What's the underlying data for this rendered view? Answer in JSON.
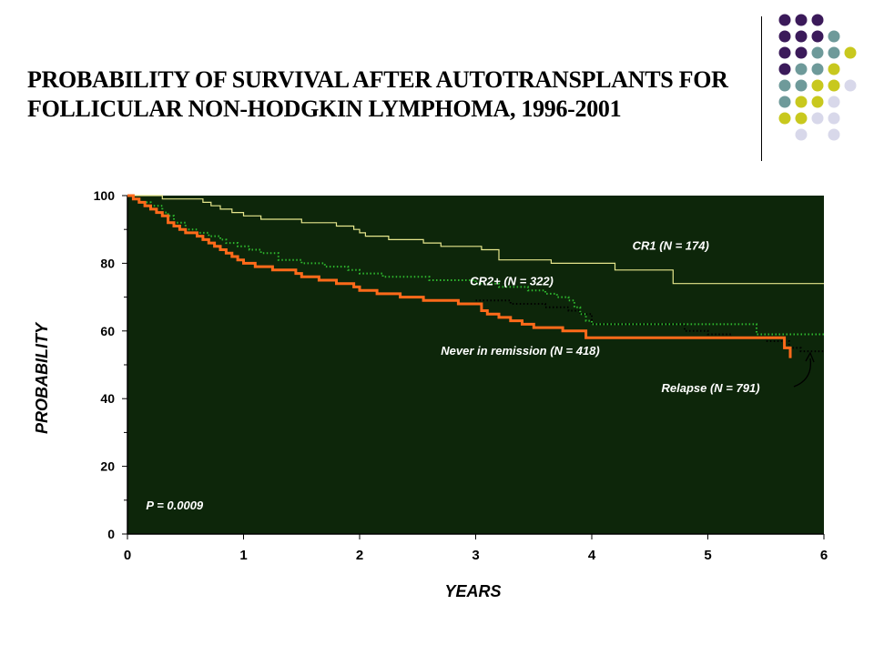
{
  "slide": {
    "title_line1": "PROBABILITY OF SURVIVAL AFTER AUTOTRANSPLANTS FOR",
    "title_line2": "FOLLICULAR NON-HODGKIN LYMPHOMA, 1996-2001"
  },
  "decor": {
    "dot_rows": [
      [
        "#3b1a5a",
        "#3b1a5a",
        "#3b1a5a",
        null,
        null
      ],
      [
        "#3b1a5a",
        "#3b1a5a",
        "#3b1a5a",
        "#6e9a9a",
        null
      ],
      [
        "#3b1a5a",
        "#3b1a5a",
        "#6e9a9a",
        "#6e9a9a",
        "#c8c81e"
      ],
      [
        "#3b1a5a",
        "#6e9a9a",
        "#6e9a9a",
        "#c8c81e",
        null
      ],
      [
        "#6e9a9a",
        "#6e9a9a",
        "#c8c81e",
        "#c8c81e",
        "#d8d8ea"
      ],
      [
        "#6e9a9a",
        "#c8c81e",
        "#c8c81e",
        "#d8d8ea",
        null
      ],
      [
        "#c8c81e",
        "#c8c81e",
        "#d8d8ea",
        "#d8d8ea",
        null
      ],
      [
        null,
        "#d8d8ea",
        null,
        "#d8d8ea",
        null
      ]
    ]
  },
  "chart_data": {
    "type": "line",
    "xlabel": "YEARS",
    "ylabel": "PROBABILITY",
    "xlim": [
      0,
      6
    ],
    "ylim": [
      0,
      100
    ],
    "xticks": [
      "0",
      "1",
      "2",
      "3",
      "4",
      "5",
      "6"
    ],
    "yticks": [
      "0",
      "20",
      "40",
      "60",
      "80",
      "100"
    ],
    "background": "#0d260a",
    "p_value_text": "P = 0.0009",
    "series": [
      {
        "name": "CR1 (N = 174)",
        "color": "#e6e68c",
        "style": "solid",
        "points": [
          [
            0,
            100
          ],
          [
            0.3,
            99
          ],
          [
            0.6,
            99
          ],
          [
            0.65,
            98
          ],
          [
            0.72,
            97
          ],
          [
            0.8,
            96
          ],
          [
            0.9,
            95
          ],
          [
            1.0,
            94
          ],
          [
            1.15,
            93
          ],
          [
            1.4,
            93
          ],
          [
            1.5,
            92
          ],
          [
            1.75,
            92
          ],
          [
            1.8,
            91
          ],
          [
            1.95,
            90
          ],
          [
            2.0,
            89
          ],
          [
            2.05,
            88
          ],
          [
            2.2,
            88
          ],
          [
            2.25,
            87
          ],
          [
            2.5,
            87
          ],
          [
            2.55,
            86
          ],
          [
            2.6,
            86
          ],
          [
            2.7,
            85
          ],
          [
            3.0,
            85
          ],
          [
            3.05,
            84
          ],
          [
            3.1,
            84
          ],
          [
            3.2,
            83
          ],
          [
            3.2,
            81
          ],
          [
            3.6,
            81
          ],
          [
            3.65,
            80
          ],
          [
            4.05,
            80
          ],
          [
            4.2,
            80
          ],
          [
            4.2,
            78
          ],
          [
            4.65,
            78
          ],
          [
            4.7,
            74
          ],
          [
            6.0,
            74
          ]
        ]
      },
      {
        "name": "CR2+ (N = 322)",
        "color": "#2eb82e",
        "style": "dotted",
        "points": [
          [
            0,
            100
          ],
          [
            0.05,
            99
          ],
          [
            0.1,
            98
          ],
          [
            0.2,
            97
          ],
          [
            0.3,
            95
          ],
          [
            0.35,
            94
          ],
          [
            0.4,
            92
          ],
          [
            0.5,
            90
          ],
          [
            0.6,
            89
          ],
          [
            0.7,
            88
          ],
          [
            0.8,
            87
          ],
          [
            0.85,
            86
          ],
          [
            0.95,
            85
          ],
          [
            1.05,
            84
          ],
          [
            1.15,
            83
          ],
          [
            1.3,
            81
          ],
          [
            1.5,
            80
          ],
          [
            1.7,
            79
          ],
          [
            1.9,
            78
          ],
          [
            2.0,
            77
          ],
          [
            2.1,
            77
          ],
          [
            2.2,
            76
          ],
          [
            2.5,
            76
          ],
          [
            2.6,
            75
          ],
          [
            2.9,
            75
          ],
          [
            3.0,
            74
          ],
          [
            3.2,
            73
          ],
          [
            3.45,
            72
          ],
          [
            3.6,
            71
          ],
          [
            3.7,
            70
          ],
          [
            3.8,
            69
          ],
          [
            3.85,
            67
          ],
          [
            3.9,
            65
          ],
          [
            3.95,
            63
          ],
          [
            4.0,
            62
          ],
          [
            5.4,
            62
          ],
          [
            5.42,
            59
          ],
          [
            6.0,
            59
          ]
        ]
      },
      {
        "name": "Never in remission (N = 418)",
        "color": "#ff6a1a",
        "style": "solid-thick",
        "points": [
          [
            0,
            100
          ],
          [
            0.05,
            99
          ],
          [
            0.1,
            98
          ],
          [
            0.15,
            97
          ],
          [
            0.2,
            96
          ],
          [
            0.25,
            95
          ],
          [
            0.3,
            94
          ],
          [
            0.35,
            92
          ],
          [
            0.4,
            91
          ],
          [
            0.45,
            90
          ],
          [
            0.5,
            89
          ],
          [
            0.6,
            88
          ],
          [
            0.65,
            87
          ],
          [
            0.7,
            86
          ],
          [
            0.75,
            85
          ],
          [
            0.8,
            84
          ],
          [
            0.85,
            83
          ],
          [
            0.9,
            82
          ],
          [
            0.95,
            81
          ],
          [
            1.0,
            80
          ],
          [
            1.05,
            80
          ],
          [
            1.1,
            79
          ],
          [
            1.2,
            79
          ],
          [
            1.25,
            78
          ],
          [
            1.4,
            78
          ],
          [
            1.45,
            77
          ],
          [
            1.5,
            76
          ],
          [
            1.6,
            76
          ],
          [
            1.65,
            75
          ],
          [
            1.75,
            75
          ],
          [
            1.8,
            74
          ],
          [
            1.9,
            74
          ],
          [
            1.95,
            73
          ],
          [
            2.0,
            72
          ],
          [
            2.1,
            72
          ],
          [
            2.15,
            71
          ],
          [
            2.3,
            71
          ],
          [
            2.35,
            70
          ],
          [
            2.5,
            70
          ],
          [
            2.55,
            69
          ],
          [
            2.8,
            69
          ],
          [
            2.85,
            68
          ],
          [
            3.0,
            68
          ],
          [
            3.05,
            66
          ],
          [
            3.1,
            65
          ],
          [
            3.2,
            64
          ],
          [
            3.3,
            63
          ],
          [
            3.4,
            62
          ],
          [
            3.5,
            61
          ],
          [
            3.7,
            61
          ],
          [
            3.75,
            60
          ],
          [
            3.9,
            60
          ],
          [
            3.95,
            58
          ],
          [
            5.65,
            58
          ],
          [
            5.66,
            55
          ],
          [
            5.7,
            55
          ],
          [
            5.71,
            52
          ]
        ]
      },
      {
        "name": "Relapse (N = 791)",
        "color": "#000000",
        "style": "dotted",
        "points": [
          [
            3.0,
            69
          ],
          [
            3.3,
            68
          ],
          [
            3.6,
            67
          ],
          [
            3.8,
            66
          ],
          [
            3.9,
            65
          ],
          [
            4.0,
            62
          ],
          [
            4.8,
            60
          ],
          [
            5.0,
            59
          ],
          [
            5.2,
            58
          ],
          [
            5.5,
            57
          ],
          [
            5.7,
            55
          ],
          [
            5.8,
            54
          ],
          [
            6.0,
            54
          ]
        ]
      }
    ],
    "annotations": [
      {
        "text": "CR1 (N = 174)",
        "x": 4.35,
        "y": 84
      },
      {
        "text": "CR2+ (N = 322)",
        "x": 2.95,
        "y": 73.5
      },
      {
        "text": "Never in remission (N = 418)",
        "x": 2.7,
        "y": 53
      },
      {
        "text": "Relapse (N = 791)",
        "x": 4.6,
        "y": 42
      }
    ]
  }
}
